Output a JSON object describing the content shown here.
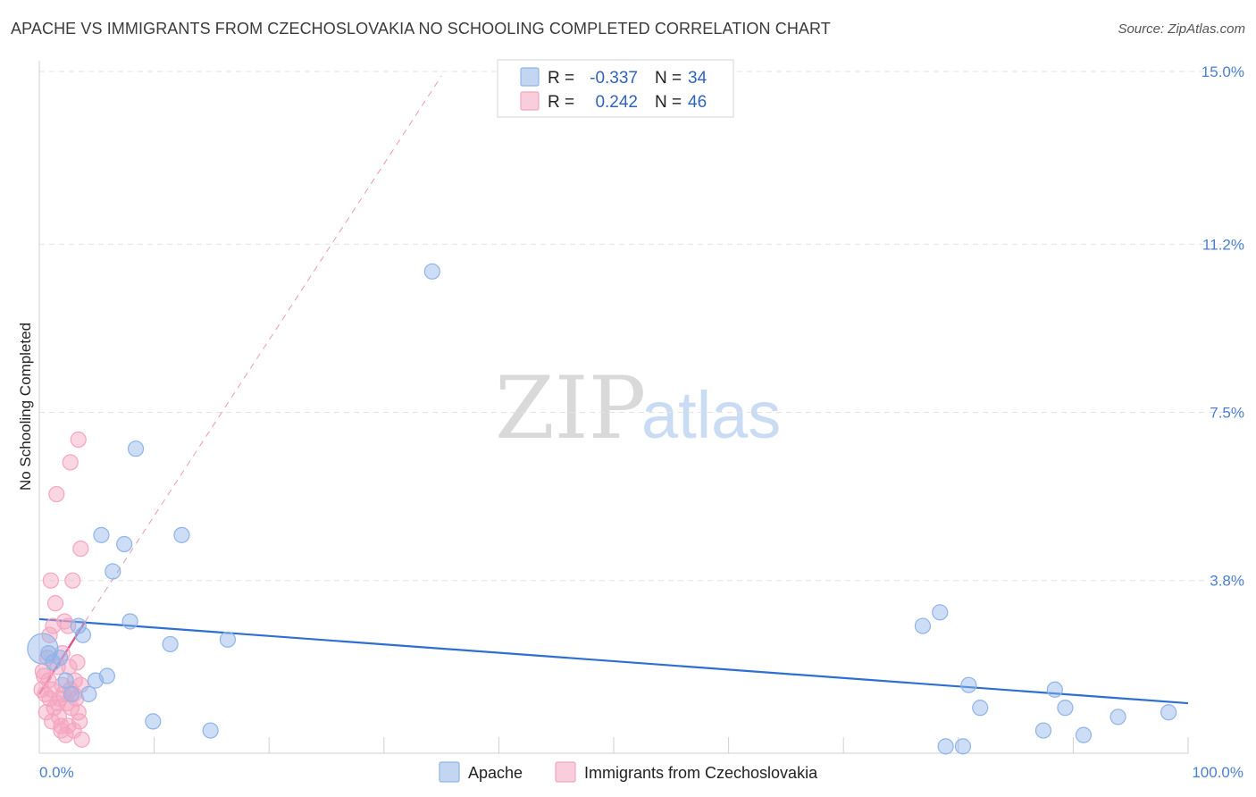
{
  "title": "APACHE VS IMMIGRANTS FROM CZECHOSLOVAKIA NO SCHOOLING COMPLETED CORRELATION CHART",
  "source": "Source: ZipAtlas.com",
  "watermark": {
    "zip": "ZIP",
    "atlas": "atlas"
  },
  "colors": {
    "apache": "#8fb4e8",
    "apache_line": "#2e6fd1",
    "czech": "#f4a5bf",
    "czech_line": "#e0508a",
    "tick": "#4a7fd0",
    "grid": "#e3e3e3"
  },
  "stats": {
    "rows": [
      {
        "r_label": "R =",
        "r_value": "-0.337",
        "n_label": "N =",
        "n_value": "34"
      },
      {
        "r_label": "R =",
        "r_value": "0.242",
        "n_label": "N =",
        "n_value": "46"
      }
    ]
  },
  "legend": {
    "items": [
      "Apache",
      "Immigrants from Czechoslovakia"
    ],
    "placement": "bottom-center"
  },
  "chart_data": {
    "type": "scatter",
    "title": "APACHE VS IMMIGRANTS FROM CZECHOSLOVAKIA NO SCHOOLING COMPLETED CORRELATION CHART",
    "xlabel": "",
    "ylabel": "No Schooling Completed",
    "xlim": [
      0,
      100
    ],
    "ylim": [
      0,
      15
    ],
    "x_ticks": [
      {
        "value": 0,
        "label": "0.0%"
      },
      {
        "value": 100,
        "label": "100.0%"
      }
    ],
    "y_ticks": [
      {
        "value": 3.8,
        "label": "3.8%"
      },
      {
        "value": 7.5,
        "label": "7.5%"
      },
      {
        "value": 11.2,
        "label": "11.2%"
      },
      {
        "value": 15.0,
        "label": "15.0%"
      }
    ],
    "grid": true,
    "series": [
      {
        "name": "Apache",
        "points": [
          [
            0.3,
            2.3
          ],
          [
            0.8,
            2.2
          ],
          [
            1.2,
            2.0
          ],
          [
            1.8,
            2.1
          ],
          [
            2.3,
            1.6
          ],
          [
            2.8,
            1.3
          ],
          [
            3.4,
            2.8
          ],
          [
            3.8,
            2.6
          ],
          [
            4.3,
            1.3
          ],
          [
            4.9,
            1.6
          ],
          [
            5.4,
            4.8
          ],
          [
            5.9,
            1.7
          ],
          [
            6.4,
            4.0
          ],
          [
            7.4,
            4.6
          ],
          [
            7.9,
            2.9
          ],
          [
            8.4,
            6.7
          ],
          [
            9.9,
            0.7
          ],
          [
            11.4,
            2.4
          ],
          [
            12.4,
            4.8
          ],
          [
            14.9,
            0.5
          ],
          [
            16.4,
            2.5
          ],
          [
            34.2,
            10.6
          ],
          [
            76.9,
            2.8
          ],
          [
            78.4,
            3.1
          ],
          [
            78.9,
            0.15
          ],
          [
            80.4,
            0.15
          ],
          [
            80.9,
            1.5
          ],
          [
            81.9,
            1.0
          ],
          [
            87.4,
            0.5
          ],
          [
            88.4,
            1.4
          ],
          [
            89.3,
            1.0
          ],
          [
            90.9,
            0.4
          ],
          [
            93.9,
            0.8
          ],
          [
            98.3,
            0.9
          ]
        ],
        "sizes": [
          3.4
        ]
      },
      {
        "name": "Immigrants from Czechoslovakia",
        "points": [
          [
            0.2,
            1.4
          ],
          [
            0.3,
            1.8
          ],
          [
            0.5,
            1.3
          ],
          [
            0.6,
            0.9
          ],
          [
            0.7,
            2.1
          ],
          [
            0.8,
            1.6
          ],
          [
            0.9,
            1.2
          ],
          [
            1.0,
            3.8
          ],
          [
            1.1,
            1.4
          ],
          [
            1.2,
            2.8
          ],
          [
            1.3,
            1.0
          ],
          [
            1.4,
            3.3
          ],
          [
            1.5,
            5.7
          ],
          [
            1.6,
            1.9
          ],
          [
            1.7,
            0.8
          ],
          [
            1.8,
            1.2
          ],
          [
            1.9,
            0.6
          ],
          [
            2.0,
            1.5
          ],
          [
            2.1,
            1.3
          ],
          [
            2.2,
            2.9
          ],
          [
            2.3,
            0.4
          ],
          [
            2.4,
            1.1
          ],
          [
            2.5,
            2.8
          ],
          [
            2.6,
            1.9
          ],
          [
            2.7,
            1.4
          ],
          [
            2.8,
            1.0
          ],
          [
            2.9,
            3.8
          ],
          [
            3.0,
            0.5
          ],
          [
            3.1,
            1.6
          ],
          [
            3.2,
            1.2
          ],
          [
            3.3,
            2.0
          ],
          [
            3.4,
            0.9
          ],
          [
            3.5,
            0.7
          ],
          [
            2.7,
            6.4
          ],
          [
            3.6,
            1.5
          ],
          [
            3.7,
            0.3
          ],
          [
            3.4,
            6.9
          ],
          [
            3.6,
            4.5
          ],
          [
            1.9,
            0.5
          ],
          [
            0.4,
            1.7
          ],
          [
            1.1,
            0.7
          ],
          [
            2.0,
            2.2
          ],
          [
            0.9,
            2.6
          ],
          [
            1.6,
            1.1
          ],
          [
            2.5,
            0.6
          ],
          [
            3.0,
            1.3
          ]
        ]
      }
    ],
    "trend_lines": [
      {
        "series": "Apache",
        "x": [
          0,
          100
        ],
        "y": [
          2.95,
          1.1
        ],
        "style": "solid"
      },
      {
        "series": "Immigrants from Czechoslovakia",
        "x": [
          0,
          4.0
        ],
        "y": [
          1.3,
          2.9
        ],
        "style": "solid"
      },
      {
        "series": "Immigrants from Czechoslovakia",
        "x": [
          4.0,
          35.0
        ],
        "y": [
          2.9,
          14.9
        ],
        "style": "dashed"
      }
    ]
  }
}
